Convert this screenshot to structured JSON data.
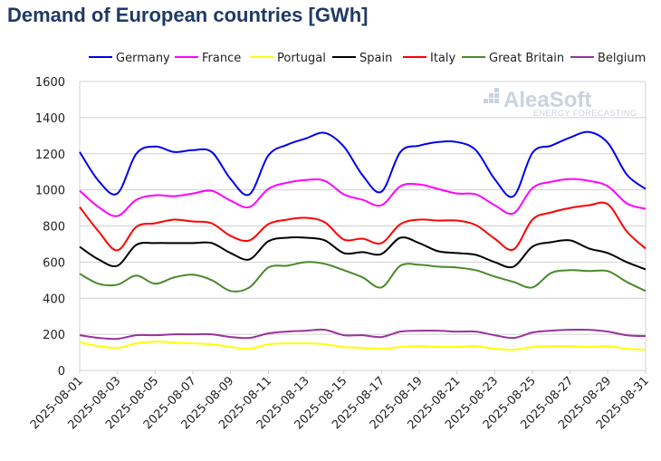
{
  "chart_data": {
    "type": "line",
    "title": "Demand of European countries [GWh]",
    "ylim": [
      0,
      1600
    ],
    "yticks": [
      0,
      200,
      400,
      600,
      800,
      1000,
      1200,
      1400,
      1600
    ],
    "x": [
      "2025-08-01",
      "2025-08-02",
      "2025-08-03",
      "2025-08-04",
      "2025-08-05",
      "2025-08-06",
      "2025-08-07",
      "2025-08-08",
      "2025-08-09",
      "2025-08-10",
      "2025-08-11",
      "2025-08-12",
      "2025-08-13",
      "2025-08-14",
      "2025-08-15",
      "2025-08-16",
      "2025-08-17",
      "2025-08-18",
      "2025-08-19",
      "2025-08-20",
      "2025-08-21",
      "2025-08-22",
      "2025-08-23",
      "2025-08-24",
      "2025-08-25",
      "2025-08-26",
      "2025-08-27",
      "2025-08-28",
      "2025-08-29",
      "2025-08-30",
      "2025-08-31"
    ],
    "xtick_labels": [
      "2025-08-01",
      "2025-08-03",
      "2025-08-05",
      "2025-08-07",
      "2025-08-09",
      "2025-08-11",
      "2025-08-13",
      "2025-08-15",
      "2025-08-17",
      "2025-08-19",
      "2025-08-21",
      "2025-08-23",
      "2025-08-25",
      "2025-08-27",
      "2025-08-29",
      "2025-08-31"
    ],
    "grid": "horizontal",
    "legend_position": "top",
    "series": [
      {
        "name": "Germany",
        "color": "#0000ee",
        "values": [
          1210,
          1050,
          980,
          1200,
          1240,
          1210,
          1220,
          1210,
          1060,
          975,
          1190,
          1250,
          1285,
          1315,
          1240,
          1080,
          990,
          1210,
          1245,
          1265,
          1265,
          1220,
          1060,
          965,
          1205,
          1245,
          1290,
          1320,
          1260,
          1085,
          1005
        ]
      },
      {
        "name": "France",
        "color": "#ff00ff",
        "values": [
          995,
          905,
          855,
          945,
          970,
          965,
          980,
          995,
          940,
          905,
          1005,
          1040,
          1055,
          1050,
          975,
          945,
          915,
          1020,
          1030,
          1005,
          980,
          975,
          915,
          870,
          1010,
          1045,
          1060,
          1050,
          1020,
          925,
          895
        ]
      },
      {
        "name": "Portugal",
        "color": "#ffff00",
        "values": [
          155,
          135,
          125,
          150,
          160,
          155,
          150,
          145,
          130,
          120,
          145,
          150,
          150,
          145,
          130,
          125,
          120,
          130,
          135,
          130,
          130,
          135,
          120,
          115,
          130,
          135,
          135,
          130,
          135,
          120,
          115
        ]
      },
      {
        "name": "Spain",
        "color": "#000000",
        "values": [
          685,
          615,
          580,
          695,
          705,
          705,
          705,
          705,
          650,
          615,
          715,
          735,
          735,
          720,
          650,
          655,
          645,
          735,
          705,
          660,
          650,
          640,
          600,
          575,
          685,
          710,
          720,
          675,
          650,
          600,
          560
        ]
      },
      {
        "name": "Italy",
        "color": "#ff0000",
        "values": [
          905,
          770,
          665,
          795,
          815,
          835,
          825,
          815,
          745,
          720,
          810,
          835,
          845,
          820,
          725,
          730,
          705,
          810,
          835,
          830,
          830,
          805,
          730,
          670,
          835,
          875,
          900,
          915,
          920,
          770,
          675
        ]
      },
      {
        "name": "Great Britain",
        "color": "#4a8a2a",
        "values": [
          535,
          480,
          475,
          525,
          480,
          515,
          530,
          500,
          440,
          460,
          570,
          580,
          600,
          590,
          555,
          515,
          460,
          580,
          585,
          575,
          570,
          555,
          520,
          490,
          460,
          540,
          555,
          550,
          550,
          490,
          440
        ]
      },
      {
        "name": "Belgium",
        "color": "#993399",
        "values": [
          195,
          180,
          175,
          195,
          195,
          200,
          200,
          200,
          185,
          180,
          205,
          215,
          220,
          225,
          195,
          195,
          185,
          215,
          220,
          220,
          215,
          215,
          195,
          180,
          210,
          220,
          225,
          225,
          215,
          195,
          190
        ]
      }
    ]
  },
  "watermark": {
    "brand": "AleaSoft",
    "tagline": "ENERGY FORECASTING"
  }
}
